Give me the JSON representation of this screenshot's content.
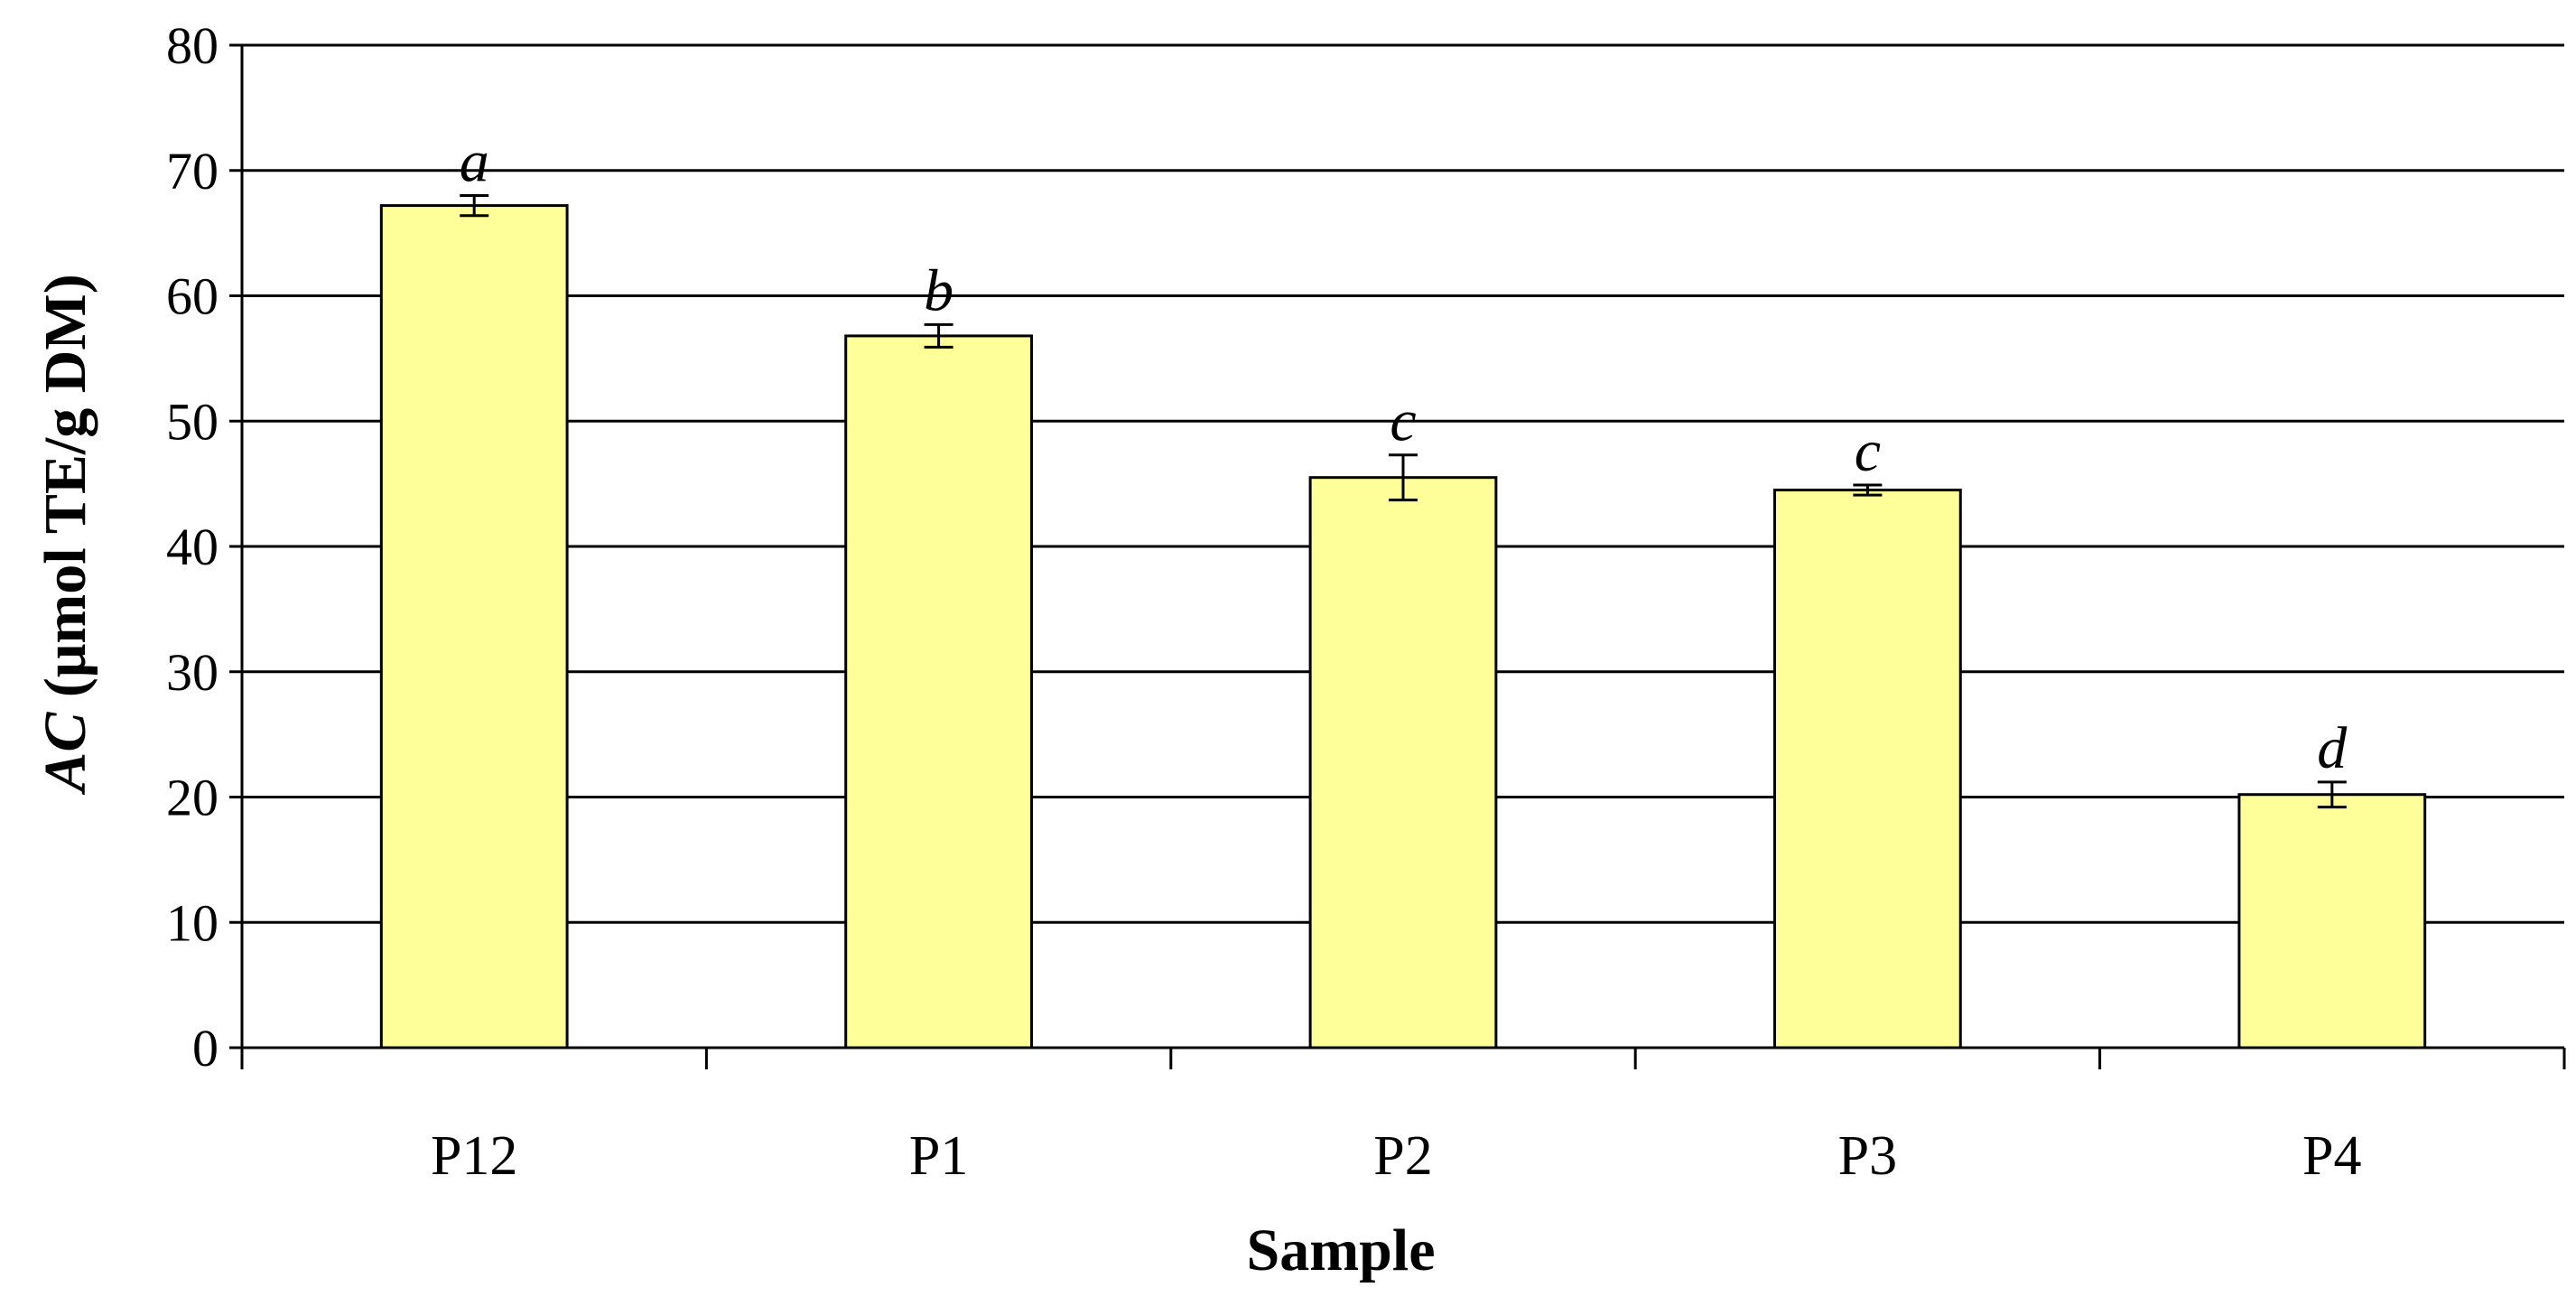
{
  "chart_data": {
    "type": "bar",
    "categories": [
      "P12",
      "P1",
      "P2",
      "P3",
      "P4"
    ],
    "values": [
      67.2,
      56.8,
      45.5,
      44.5,
      20.2
    ],
    "errors": [
      0.8,
      0.9,
      1.8,
      0.4,
      1.0
    ],
    "significance_letters": [
      "a",
      "b",
      "c",
      "c",
      "d"
    ],
    "title": "",
    "xlabel": "Sample",
    "ylabel_italic": "AC",
    "ylabel_rest": " (μmol TE/g DM)",
    "ylim": [
      0,
      80
    ],
    "yticks": [
      0,
      10,
      20,
      30,
      40,
      50,
      60,
      70,
      80
    ],
    "grid": true,
    "legend": "none",
    "colors": {
      "bar_fill": "#ffff99",
      "bar_stroke": "#000000",
      "gridline": "#000000",
      "axis": "#000000"
    }
  }
}
